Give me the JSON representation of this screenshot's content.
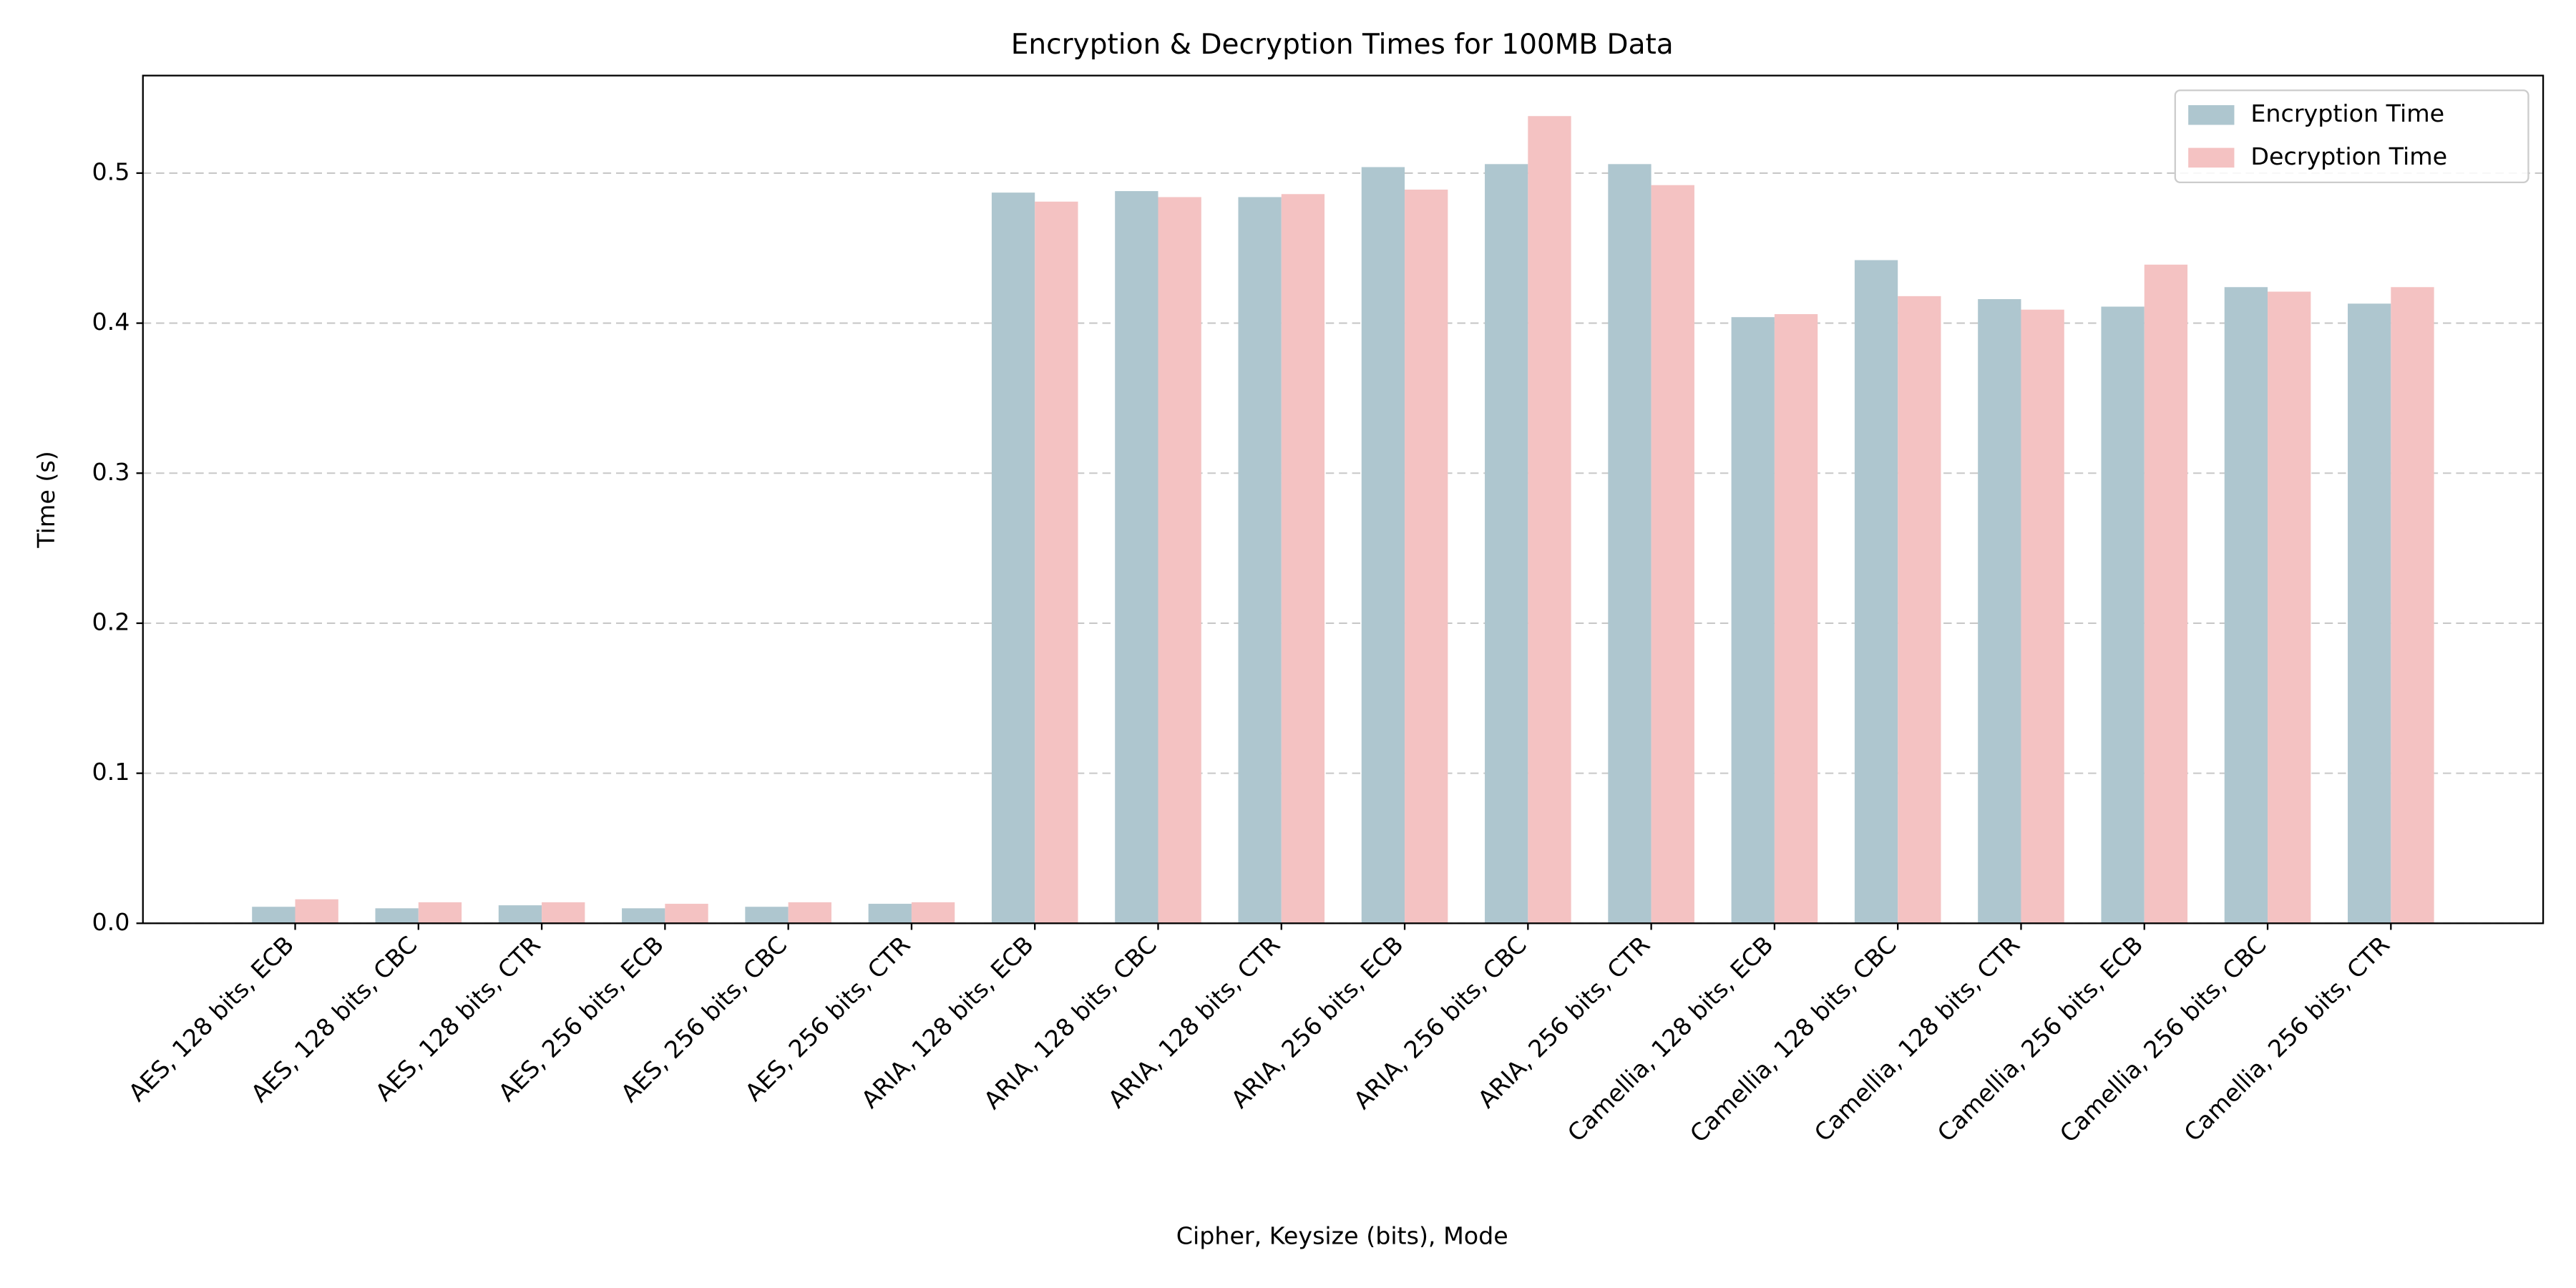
{
  "chart_data": {
    "type": "bar",
    "title": "Encryption & Decryption Times for 100MB Data",
    "xlabel": "Cipher, Keysize (bits), Mode",
    "ylabel": "Time (s)",
    "categories": [
      "AES, 128 bits, ECB",
      "AES, 128 bits, CBC",
      "AES, 128 bits, CTR",
      "AES, 256 bits, ECB",
      "AES, 256 bits, CBC",
      "AES, 256 bits, CTR",
      "ARIA, 128 bits, ECB",
      "ARIA, 128 bits, CBC",
      "ARIA, 128 bits, CTR",
      "ARIA, 256 bits, ECB",
      "ARIA, 256 bits, CBC",
      "ARIA, 256 bits, CTR",
      "Camellia, 128 bits, ECB",
      "Camellia, 128 bits, CBC",
      "Camellia, 128 bits, CTR",
      "Camellia, 256 bits, ECB",
      "Camellia, 256 bits, CBC",
      "Camellia, 256 bits, CTR"
    ],
    "series": [
      {
        "name": "Encryption Time",
        "color": "#aec6cf",
        "values": [
          0.011,
          0.01,
          0.012,
          0.01,
          0.011,
          0.013,
          0.487,
          0.488,
          0.484,
          0.504,
          0.506,
          0.506,
          0.404,
          0.442,
          0.416,
          0.411,
          0.424,
          0.413
        ]
      },
      {
        "name": "Decryption Time",
        "color": "#f4c2c2",
        "values": [
          0.016,
          0.014,
          0.014,
          0.013,
          0.014,
          0.014,
          0.481,
          0.484,
          0.486,
          0.489,
          0.538,
          0.492,
          0.406,
          0.418,
          0.409,
          0.439,
          0.421,
          0.424
        ]
      }
    ],
    "ylim": [
      0,
      0.565
    ],
    "yticks": [
      0.0,
      0.1,
      0.2,
      0.3,
      0.4,
      0.5
    ],
    "grid": true,
    "legend": "upper right"
  }
}
